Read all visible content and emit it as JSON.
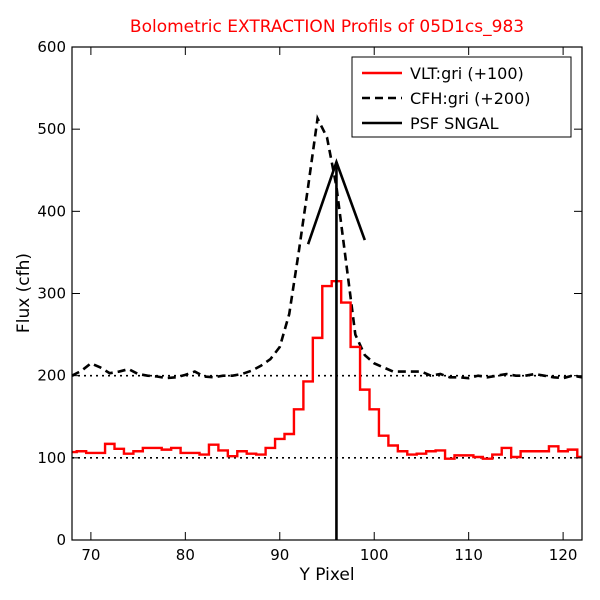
{
  "chart_data": {
    "type": "line",
    "title": "Bolometric EXTRACTION Profils of 05D1cs_983",
    "title_color": "#ff0000",
    "xlabel": "Y Pixel",
    "ylabel": "Flux (cfh)",
    "xlim": [
      68,
      122
    ],
    "ylim": [
      0,
      600
    ],
    "x_ticks": [
      70,
      80,
      90,
      100,
      110,
      120
    ],
    "y_ticks": [
      0,
      100,
      200,
      300,
      400,
      500,
      600
    ],
    "grid": false,
    "legend_position": "top-right",
    "series": [
      {
        "name": "VLT:gri (+100)",
        "style": "steps",
        "color": "#ff0000",
        "x": [
          68,
          69,
          70,
          71,
          72,
          73,
          74,
          75,
          76,
          77,
          78,
          79,
          80,
          81,
          82,
          83,
          84,
          85,
          86,
          87,
          88,
          89,
          90,
          91,
          92,
          93,
          94,
          95,
          96,
          97,
          98,
          99,
          100,
          101,
          102,
          103,
          104,
          105,
          106,
          107,
          108,
          109,
          110,
          111,
          112,
          113,
          114,
          115,
          116,
          117,
          118,
          119,
          120,
          121,
          122
        ],
        "y": [
          107,
          108,
          106,
          106,
          117,
          111,
          105,
          108,
          112,
          112,
          110,
          112,
          106,
          106,
          104,
          116,
          109,
          102,
          108,
          105,
          104,
          112,
          123,
          129,
          159,
          193,
          246,
          309,
          315,
          289,
          235,
          183,
          159,
          127,
          115,
          108,
          104,
          105,
          108,
          109,
          99,
          103,
          103,
          101,
          99,
          104,
          112,
          101,
          108,
          108,
          108,
          114,
          108,
          110,
          101
        ]
      },
      {
        "name": "CFH:gri (+200)",
        "style": "dashed",
        "color": "#000000",
        "x": [
          68,
          69,
          70,
          71,
          72,
          73,
          74,
          75,
          76,
          77,
          78,
          79,
          80,
          81,
          82,
          83,
          84,
          85,
          86,
          87,
          88,
          89,
          90,
          91,
          92,
          93,
          94,
          95,
          96,
          97,
          98,
          99,
          100,
          101,
          102,
          103,
          104,
          105,
          106,
          107,
          108,
          109,
          110,
          111,
          112,
          113,
          114,
          115,
          116,
          117,
          118,
          119,
          120,
          121,
          122
        ],
        "y": [
          200,
          206,
          215,
          210,
          203,
          205,
          208,
          202,
          200,
          199,
          197,
          198,
          201,
          205,
          199,
          198,
          200,
          200,
          202,
          206,
          212,
          220,
          235,
          275,
          350,
          430,
          513,
          490,
          430,
          340,
          250,
          225,
          215,
          210,
          205,
          205,
          205,
          205,
          200,
          202,
          198,
          198,
          197,
          200,
          198,
          200,
          202,
          200,
          200,
          202,
          200,
          198,
          197,
          200,
          198
        ]
      },
      {
        "name": "PSF SNGAL",
        "style": "solid",
        "color": "#000000",
        "x": [
          93,
          96,
          99
        ],
        "y": [
          360,
          460,
          365
        ],
        "vertical_line_x": 96
      }
    ],
    "reference_lines": [
      {
        "y": 100,
        "style": "dotted",
        "color": "#000000"
      },
      {
        "y": 200,
        "style": "dotted",
        "color": "#000000"
      }
    ]
  }
}
